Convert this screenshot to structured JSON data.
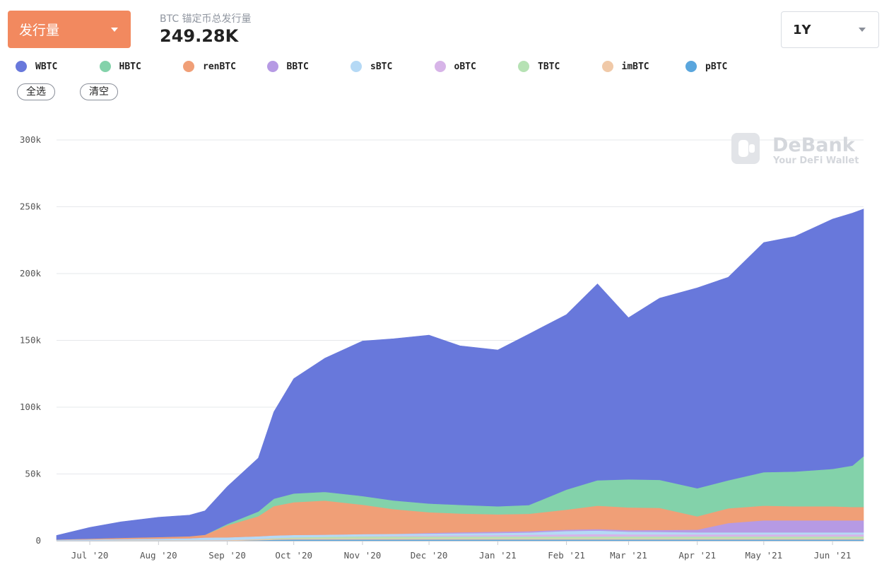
{
  "header": {
    "metric_label": "发行量",
    "summary_label": "BTC 锚定币总发行量",
    "summary_value": "249.28K",
    "range_label": "1Y",
    "select_all_label": "全选",
    "clear_label": "清空"
  },
  "watermark": {
    "name": "DeBank",
    "tagline": "Your DeFi Wallet"
  },
  "chart_data": {
    "type": "area",
    "stacked": true,
    "title": "",
    "xlabel": "",
    "ylabel": "",
    "ylim": [
      0,
      300000
    ],
    "y_ticks": [
      0,
      50000,
      100000,
      150000,
      200000,
      250000,
      300000
    ],
    "y_tick_labels": [
      "0",
      "50k",
      "100k",
      "150k",
      "200k",
      "250k",
      "300k"
    ],
    "x_range": [
      "2020-06-16",
      "2021-06-15"
    ],
    "x_tick_dates": [
      "2020-07-01",
      "2020-08-01",
      "2020-09-01",
      "2020-10-01",
      "2020-11-01",
      "2020-12-01",
      "2021-01-01",
      "2021-02-01",
      "2021-03-01",
      "2021-04-01",
      "2021-05-01",
      "2021-06-01"
    ],
    "x_tick_labels": [
      "Jul '20",
      "Aug '20",
      "Sep '20",
      "Oct '20",
      "Nov '20",
      "Dec '20",
      "Jan '21",
      "Feb '21",
      "Mar '21",
      "Apr '21",
      "May '21",
      "Jun '21"
    ],
    "grid": true,
    "legend_position": "top-left",
    "x": [
      "2020-06-16",
      "2020-07-01",
      "2020-07-15",
      "2020-08-01",
      "2020-08-15",
      "2020-08-22",
      "2020-09-01",
      "2020-09-15",
      "2020-09-22",
      "2020-10-01",
      "2020-10-15",
      "2020-11-01",
      "2020-11-15",
      "2020-12-01",
      "2020-12-15",
      "2021-01-01",
      "2021-01-15",
      "2021-02-01",
      "2021-02-15",
      "2021-03-01",
      "2021-03-15",
      "2021-04-01",
      "2021-04-15",
      "2021-05-01",
      "2021-05-15",
      "2021-06-01",
      "2021-06-10",
      "2021-06-15"
    ],
    "series": [
      {
        "name": "pBTC",
        "color": "#5aa6dd",
        "values": [
          0,
          0,
          0,
          0,
          0,
          0,
          0,
          500,
          800,
          1000,
          1000,
          1000,
          1000,
          1000,
          1000,
          1000,
          1000,
          1000,
          1000,
          1000,
          1000,
          1000,
          1000,
          1000,
          1000,
          1000,
          1000,
          1000
        ]
      },
      {
        "name": "imBTC",
        "color": "#f0c9a8",
        "values": [
          300,
          300,
          400,
          400,
          400,
          500,
          600,
          700,
          700,
          800,
          800,
          800,
          800,
          800,
          800,
          800,
          800,
          800,
          800,
          800,
          800,
          800,
          800,
          800,
          800,
          800,
          800,
          800
        ]
      },
      {
        "name": "TBTC",
        "color": "#b6e2b4",
        "values": [
          0,
          0,
          0,
          0,
          0,
          0,
          0,
          200,
          500,
          800,
          1200,
          1500,
          1500,
          1500,
          1500,
          1500,
          1500,
          1500,
          1500,
          1500,
          1500,
          1500,
          1500,
          1500,
          1500,
          1500,
          1500,
          1500
        ]
      },
      {
        "name": "oBTC",
        "color": "#d7b4e8",
        "values": [
          0,
          0,
          0,
          0,
          0,
          0,
          0,
          0,
          0,
          0,
          0,
          200,
          400,
          600,
          800,
          1000,
          1200,
          1500,
          1800,
          1500,
          1500,
          1500,
          1500,
          1500,
          1500,
          1500,
          1500,
          1500
        ]
      },
      {
        "name": "sBTC",
        "color": "#b5d9f5",
        "values": [
          500,
          800,
          1000,
          1200,
          1500,
          2000,
          2000,
          2000,
          2000,
          1800,
          1600,
          1500,
          1500,
          1500,
          1500,
          1500,
          1700,
          2500,
          2500,
          2000,
          1800,
          1500,
          1500,
          1500,
          1500,
          1500,
          1500,
          1500
        ]
      },
      {
        "name": "BBTC",
        "color": "#b69ae4",
        "values": [
          0,
          0,
          0,
          0,
          0,
          0,
          0,
          0,
          0,
          0,
          0,
          0,
          0,
          500,
          800,
          1000,
          1000,
          1000,
          1200,
          1200,
          1500,
          2000,
          7000,
          9000,
          9000,
          9000,
          9000,
          9000
        ]
      },
      {
        "name": "renBTC",
        "color": "#f09f77",
        "values": [
          200,
          500,
          800,
          1200,
          1500,
          2000,
          9000,
          15000,
          22000,
          24500,
          25500,
          22000,
          18500,
          15500,
          14000,
          13000,
          13000,
          15000,
          17500,
          17000,
          16500,
          10000,
          11000,
          11000,
          10500,
          10500,
          10000,
          10000
        ]
      },
      {
        "name": "HBTC",
        "color": "#83d2aa",
        "values": [
          0,
          0,
          0,
          0,
          0,
          0,
          1000,
          3500,
          5500,
          6500,
          6500,
          6500,
          6500,
          6500,
          6500,
          6000,
          6500,
          15000,
          19000,
          21000,
          21000,
          21000,
          21000,
          25000,
          26000,
          28000,
          31000,
          38000
        ]
      },
      {
        "name": "WBTC",
        "color": "#6878db",
        "values": [
          3000,
          8400,
          12000,
          14800,
          15800,
          18000,
          28000,
          40000,
          65000,
          86000,
          100000,
          116000,
          121000,
          126000,
          119000,
          117000,
          128000,
          131000,
          147000,
          121000,
          136000,
          150000,
          152000,
          172000,
          176000,
          187000,
          189000,
          185000
        ]
      }
    ]
  },
  "legend_order": [
    "WBTC",
    "HBTC",
    "renBTC",
    "BBTC",
    "sBTC",
    "oBTC",
    "TBTC",
    "imBTC",
    "pBTC"
  ]
}
